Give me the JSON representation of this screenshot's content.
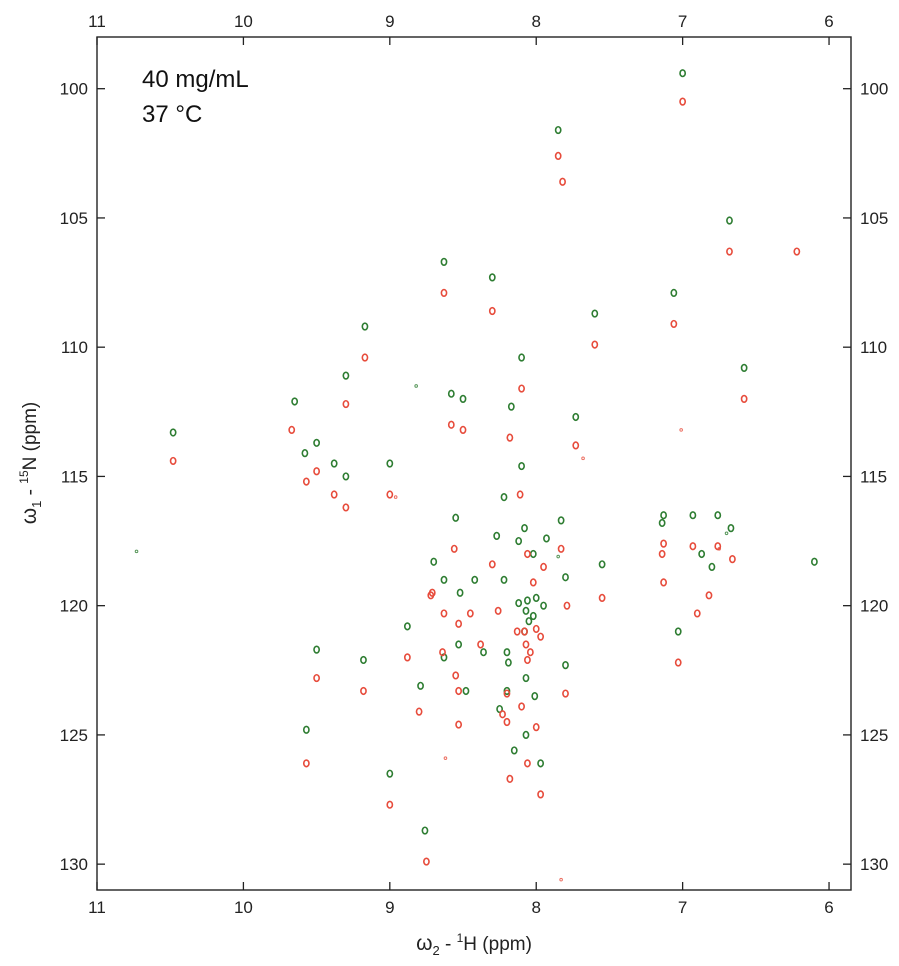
{
  "chart_data": {
    "type": "scatter",
    "title": "",
    "annotations": [
      "40 mg/mL",
      "37 °C"
    ],
    "xlabel": {
      "greek": "ω",
      "sub": "2",
      "sup": "1",
      "rest": " - ",
      "nucleus": "H",
      "unit": " (ppm)"
    },
    "ylabel": {
      "greek": "ω",
      "sub": "1",
      "sup": "15",
      "rest": " - ",
      "nucleus": "N",
      "unit": " (ppm)"
    },
    "xlim": [
      11,
      5.85
    ],
    "ylim": [
      131,
      98
    ],
    "x_ticks": [
      11,
      10,
      9,
      8,
      7,
      6
    ],
    "y_ticks": [
      100,
      105,
      110,
      115,
      120,
      125,
      130
    ],
    "x_reversed": true,
    "y_reversed": true,
    "grid": false,
    "series": [
      {
        "color": "#2e7d32",
        "points": [
          [
            7.0,
            99.4
          ],
          [
            7.85,
            101.6
          ],
          [
            6.68,
            105.1
          ],
          [
            8.63,
            106.7
          ],
          [
            8.3,
            107.3
          ],
          [
            7.06,
            107.9
          ],
          [
            7.6,
            108.7
          ],
          [
            9.17,
            109.2
          ],
          [
            8.1,
            110.4
          ],
          [
            9.3,
            111.1
          ],
          [
            6.58,
            110.8
          ],
          [
            8.58,
            111.8
          ],
          [
            8.5,
            112.0
          ],
          [
            8.17,
            112.3
          ],
          [
            9.65,
            112.1
          ],
          [
            10.48,
            113.3
          ],
          [
            7.73,
            112.7
          ],
          [
            9.5,
            113.7
          ],
          [
            9.58,
            114.1
          ],
          [
            9.38,
            114.5
          ],
          [
            9.0,
            114.5
          ],
          [
            8.1,
            114.6
          ],
          [
            9.3,
            115.0
          ],
          [
            8.22,
            115.8
          ],
          [
            8.55,
            116.6
          ],
          [
            7.13,
            116.5
          ],
          [
            6.93,
            116.5
          ],
          [
            6.76,
            116.5
          ],
          [
            7.83,
            116.7
          ],
          [
            8.08,
            117.0
          ],
          [
            7.14,
            116.8
          ],
          [
            6.67,
            117.0
          ],
          [
            8.27,
            117.3
          ],
          [
            7.93,
            117.4
          ],
          [
            8.12,
            117.5
          ],
          [
            8.7,
            118.3
          ],
          [
            8.02,
            118.0
          ],
          [
            6.87,
            118.0
          ],
          [
            6.1,
            118.3
          ],
          [
            6.8,
            118.5
          ],
          [
            7.55,
            118.4
          ],
          [
            8.63,
            119.0
          ],
          [
            8.42,
            119.0
          ],
          [
            8.22,
            119.0
          ],
          [
            7.8,
            118.9
          ],
          [
            8.52,
            119.5
          ],
          [
            8.12,
            119.9
          ],
          [
            8.06,
            119.8
          ],
          [
            8.0,
            119.7
          ],
          [
            7.95,
            120.0
          ],
          [
            8.07,
            120.2
          ],
          [
            8.02,
            120.4
          ],
          [
            8.05,
            120.6
          ],
          [
            8.08,
            121.0
          ],
          [
            7.03,
            121.0
          ],
          [
            8.88,
            120.8
          ],
          [
            8.53,
            121.5
          ],
          [
            8.2,
            121.8
          ],
          [
            9.5,
            121.7
          ],
          [
            9.18,
            122.1
          ],
          [
            8.63,
            122.0
          ],
          [
            8.36,
            121.8
          ],
          [
            8.19,
            122.2
          ],
          [
            7.8,
            122.3
          ],
          [
            8.07,
            122.8
          ],
          [
            8.48,
            123.3
          ],
          [
            8.79,
            123.1
          ],
          [
            8.2,
            123.3
          ],
          [
            8.01,
            123.5
          ],
          [
            8.25,
            124.0
          ],
          [
            8.15,
            125.6
          ],
          [
            8.07,
            125.0
          ],
          [
            7.97,
            126.1
          ],
          [
            9.57,
            124.8
          ],
          [
            9.0,
            126.5
          ],
          [
            8.76,
            128.7
          ]
        ]
      },
      {
        "color": "#e74c3c",
        "points": [
          [
            7.0,
            100.5
          ],
          [
            7.85,
            102.6
          ],
          [
            7.82,
            103.6
          ],
          [
            6.68,
            106.3
          ],
          [
            6.22,
            106.3
          ],
          [
            8.63,
            107.9
          ],
          [
            8.3,
            108.6
          ],
          [
            7.06,
            109.1
          ],
          [
            7.6,
            109.9
          ],
          [
            9.17,
            110.4
          ],
          [
            8.1,
            111.6
          ],
          [
            9.3,
            112.2
          ],
          [
            6.58,
            112.0
          ],
          [
            8.58,
            113.0
          ],
          [
            8.5,
            113.2
          ],
          [
            8.18,
            113.5
          ],
          [
            9.67,
            113.2
          ],
          [
            10.48,
            114.4
          ],
          [
            7.73,
            113.8
          ],
          [
            9.5,
            114.8
          ],
          [
            9.57,
            115.2
          ],
          [
            9.38,
            115.7
          ],
          [
            9.0,
            115.7
          ],
          [
            8.11,
            115.7
          ],
          [
            9.3,
            116.2
          ],
          [
            7.13,
            117.6
          ],
          [
            6.93,
            117.7
          ],
          [
            6.76,
            117.7
          ],
          [
            7.83,
            117.8
          ],
          [
            8.56,
            117.8
          ],
          [
            8.06,
            118.0
          ],
          [
            7.14,
            118.0
          ],
          [
            6.66,
            118.2
          ],
          [
            8.3,
            118.4
          ],
          [
            7.95,
            118.5
          ],
          [
            8.71,
            119.5
          ],
          [
            8.72,
            119.6
          ],
          [
            8.02,
            119.1
          ],
          [
            7.13,
            119.1
          ],
          [
            6.82,
            119.6
          ],
          [
            7.55,
            119.7
          ],
          [
            8.63,
            120.3
          ],
          [
            8.45,
            120.3
          ],
          [
            8.26,
            120.2
          ],
          [
            7.79,
            120.0
          ],
          [
            6.9,
            120.3
          ],
          [
            8.53,
            120.7
          ],
          [
            8.13,
            121.0
          ],
          [
            8.08,
            121.0
          ],
          [
            8.0,
            120.9
          ],
          [
            7.97,
            121.2
          ],
          [
            8.07,
            121.5
          ],
          [
            8.04,
            121.8
          ],
          [
            8.06,
            122.1
          ],
          [
            7.03,
            122.2
          ],
          [
            8.88,
            122.0
          ],
          [
            8.64,
            121.8
          ],
          [
            8.38,
            121.5
          ],
          [
            9.5,
            122.8
          ],
          [
            9.18,
            123.3
          ],
          [
            8.55,
            122.7
          ],
          [
            8.53,
            123.3
          ],
          [
            8.2,
            123.4
          ],
          [
            7.8,
            123.4
          ],
          [
            8.1,
            123.9
          ],
          [
            8.8,
            124.1
          ],
          [
            8.23,
            124.2
          ],
          [
            8.2,
            124.5
          ],
          [
            8.53,
            124.6
          ],
          [
            8.0,
            124.7
          ],
          [
            8.18,
            126.7
          ],
          [
            8.06,
            126.1
          ],
          [
            7.97,
            127.3
          ],
          [
            9.57,
            126.1
          ],
          [
            9.0,
            127.7
          ],
          [
            8.75,
            129.9
          ]
        ]
      },
      {
        "color": "#2e7d32",
        "faint": true,
        "points": [
          [
            10.73,
            117.9
          ],
          [
            8.82,
            111.5
          ],
          [
            6.7,
            117.2
          ],
          [
            7.85,
            118.1
          ]
        ]
      },
      {
        "color": "#e74c3c",
        "faint": true,
        "points": [
          [
            8.96,
            115.8
          ],
          [
            7.01,
            113.2
          ],
          [
            6.75,
            117.8
          ],
          [
            7.83,
            130.6
          ],
          [
            8.62,
            125.9
          ],
          [
            7.68,
            114.3
          ]
        ]
      }
    ]
  }
}
